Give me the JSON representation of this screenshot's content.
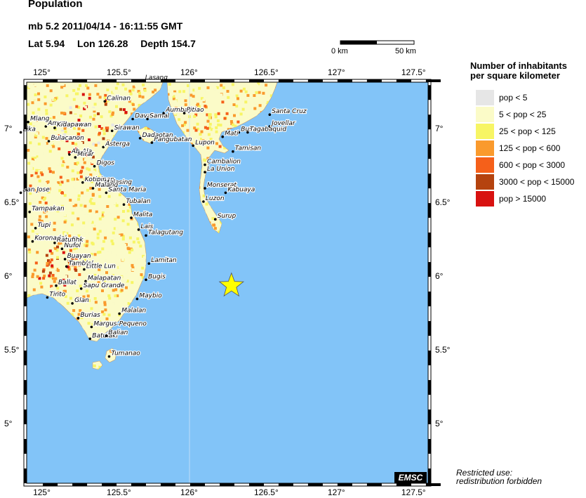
{
  "header": {
    "title": "Population",
    "magnitude_time": "mb 5.2  2011/04/14 - 16:11:55 GMT",
    "lat": "Lat  5.94",
    "lon": "Lon 126.28",
    "depth": "Depth 154.7"
  },
  "scale_bar": {
    "start_label": "0 km",
    "end_label": "50 km"
  },
  "legend": {
    "title_line1": "Number of inhabitants",
    "title_line2": "per square kilometer",
    "items": [
      {
        "label": "pop < 5",
        "color": "#e6e6e6"
      },
      {
        "label": "5 < pop < 25",
        "color": "#fbfbc8"
      },
      {
        "label": "25 < pop < 125",
        "color": "#f7f564"
      },
      {
        "label": "125 < pop < 600",
        "color": "#fa9a2d"
      },
      {
        "label": "600 < pop < 3000",
        "color": "#f5601a"
      },
      {
        "label": "3000 < pop < 15000",
        "color": "#b5430f"
      },
      {
        "label": "pop > 15000",
        "color": "#d81210"
      }
    ]
  },
  "axes": {
    "lon_labels": [
      "125°",
      "125.5°",
      "126°",
      "126.5°",
      "127°",
      "127.5°"
    ],
    "lat_labels": [
      "7°",
      "6.5°",
      "6°",
      "5.5°",
      "5°"
    ]
  },
  "epicenter": {
    "lat": 5.94,
    "lon": 126.28,
    "marker": "star-icon",
    "color": "#ffff00"
  },
  "colors": {
    "sea": "#82c4f8",
    "land_base": "#fbfbc8"
  },
  "places": [
    {
      "name": "Lasang",
      "lon": 125.68,
      "lat": 7.33
    },
    {
      "name": "Calinan",
      "lon": 125.42,
      "lat": 7.19
    },
    {
      "name": "Davao",
      "lon": 125.61,
      "lat": 7.07
    },
    {
      "name": "Samal",
      "lon": 125.71,
      "lat": 7.07
    },
    {
      "name": "Aumbay",
      "lon": 125.82,
      "lat": 7.11
    },
    {
      "name": "Pitiao",
      "lon": 125.96,
      "lat": 7.11
    },
    {
      "name": "Mlang",
      "lon": 124.9,
      "lat": 7.05
    },
    {
      "name": "Amas",
      "lon": 125.02,
      "lat": 7.02
    },
    {
      "name": "Kidapawan",
      "lon": 125.08,
      "lat": 7.01
    },
    {
      "name": "Lika",
      "lon": 124.85,
      "lat": 6.98
    },
    {
      "name": "Sirawan",
      "lon": 125.47,
      "lat": 6.99
    },
    {
      "name": "Bulacanon",
      "lon": 125.04,
      "lat": 6.92
    },
    {
      "name": "Dadaotan",
      "lon": 125.66,
      "lat": 6.94
    },
    {
      "name": "Pangubatan",
      "lon": 125.74,
      "lat": 6.91
    },
    {
      "name": "Buso",
      "lon": 126.33,
      "lat": 6.98
    },
    {
      "name": "Tagabaquid",
      "lon": 126.39,
      "lat": 6.98
    },
    {
      "name": "Jovellar",
      "lon": 126.54,
      "lat": 7.02
    },
    {
      "name": "Santa Cruz",
      "lon": 126.54,
      "lat": 7.1
    },
    {
      "name": "Mati",
      "lon": 126.22,
      "lat": 6.95
    },
    {
      "name": "Lupon",
      "lon": 126.02,
      "lat": 6.89
    },
    {
      "name": "Tamisan",
      "lon": 126.29,
      "lat": 6.85
    },
    {
      "name": "Asterga",
      "lon": 125.41,
      "lat": 6.88
    },
    {
      "name": "Ab-Ala",
      "lon": 125.18,
      "lat": 6.83
    },
    {
      "name": "Mirar",
      "lon": 125.22,
      "lat": 6.81
    },
    {
      "name": "Digos",
      "lon": 125.35,
      "lat": 6.75
    },
    {
      "name": "Cambalion",
      "lon": 126.1,
      "lat": 6.76
    },
    {
      "name": "La Union",
      "lon": 126.1,
      "lat": 6.71
    },
    {
      "name": "Kotipinan",
      "lon": 125.27,
      "lat": 6.64
    },
    {
      "name": "Malasing",
      "lon": 125.4,
      "lat": 6.62
    },
    {
      "name": "Malang",
      "lon": 125.34,
      "lat": 6.6
    },
    {
      "name": "Santa Maria",
      "lon": 125.43,
      "lat": 6.57
    },
    {
      "name": "Monserat",
      "lon": 126.1,
      "lat": 6.6
    },
    {
      "name": "Kabuaya",
      "lon": 126.24,
      "lat": 6.57
    },
    {
      "name": "San Jose",
      "lon": 124.85,
      "lat": 6.57
    },
    {
      "name": "Tubalan",
      "lon": 125.55,
      "lat": 6.49
    },
    {
      "name": "Luzon",
      "lon": 126.09,
      "lat": 6.51
    },
    {
      "name": "Tampakan",
      "lon": 124.91,
      "lat": 6.44
    },
    {
      "name": "Malita",
      "lon": 125.6,
      "lat": 6.4
    },
    {
      "name": "Surup",
      "lon": 126.17,
      "lat": 6.39
    },
    {
      "name": "Tupi",
      "lon": 124.95,
      "lat": 6.33
    },
    {
      "name": "Lais",
      "lon": 125.65,
      "lat": 6.32
    },
    {
      "name": "Talagutang",
      "lon": 125.7,
      "lat": 6.28
    },
    {
      "name": "Koronadal",
      "lon": 124.93,
      "lat": 6.24
    },
    {
      "name": "Ratufihk",
      "lon": 125.08,
      "lat": 6.23
    },
    {
      "name": "Nufol",
      "lon": 125.13,
      "lat": 6.19
    },
    {
      "name": "Buayan",
      "lon": 125.15,
      "lat": 6.12
    },
    {
      "name": "Lamitan",
      "lon": 125.72,
      "lat": 6.09
    },
    {
      "name": "Tamblel",
      "lon": 125.16,
      "lat": 6.07
    },
    {
      "name": "Little Lun",
      "lon": 125.28,
      "lat": 6.05
    },
    {
      "name": "Bugis",
      "lon": 125.7,
      "lat": 5.98
    },
    {
      "name": "Malapatan",
      "lon": 125.29,
      "lat": 5.97
    },
    {
      "name": "Ballat",
      "lon": 125.09,
      "lat": 5.94
    },
    {
      "name": "Sapu Grande",
      "lon": 125.26,
      "lat": 5.92
    },
    {
      "name": "Tinto",
      "lon": 125.03,
      "lat": 5.86
    },
    {
      "name": "Maybio",
      "lon": 125.64,
      "lat": 5.85
    },
    {
      "name": "Glan",
      "lon": 125.2,
      "lat": 5.82
    },
    {
      "name": "Malalan",
      "lon": 125.52,
      "lat": 5.75
    },
    {
      "name": "Burias",
      "lon": 125.24,
      "lat": 5.72
    },
    {
      "name": "Margus-Pequeno",
      "lon": 125.33,
      "lat": 5.66
    },
    {
      "name": "Batulaki",
      "lon": 125.32,
      "lat": 5.58
    },
    {
      "name": "Balian",
      "lon": 125.43,
      "lat": 5.6
    },
    {
      "name": "Tumanao",
      "lon": 125.45,
      "lat": 5.46
    }
  ]
}
